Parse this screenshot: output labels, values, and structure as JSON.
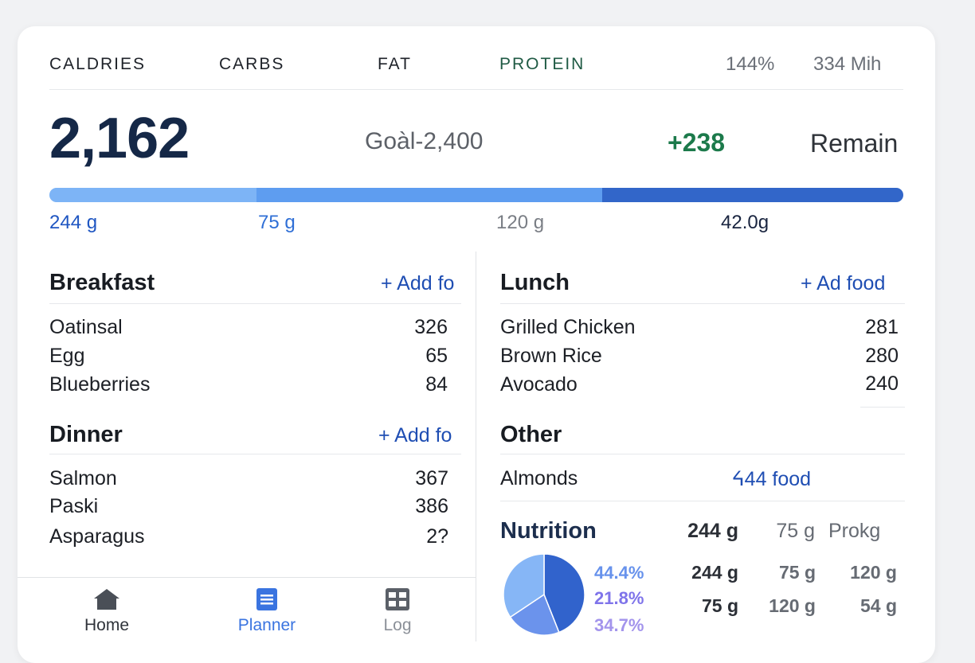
{
  "header": {
    "tabs": [
      {
        "label": "CALDRIES"
      },
      {
        "label": "CARBS"
      },
      {
        "label": "FAT"
      },
      {
        "label": "PROTEIN"
      }
    ],
    "stat_percent": "144%",
    "stat_min": "334 Mih"
  },
  "summary": {
    "calories": "2,162",
    "goal": "Goàl-2,400",
    "delta": "+238",
    "remain_label": "Remain",
    "progress_segments": [
      0.243,
      0.404,
      0.353
    ]
  },
  "macros": [
    "244 g",
    "75 g",
    "120 g",
    "42.0g"
  ],
  "meals": {
    "breakfast": {
      "title": "Breakfast",
      "add_label": "+ Add fo",
      "items": [
        {
          "name": "Oatinsal",
          "kcal": "326"
        },
        {
          "name": "Egg",
          "kcal": "65"
        },
        {
          "name": "Blueberries",
          "kcal": "84"
        }
      ]
    },
    "dinner": {
      "title": "Dinner",
      "add_label": "+ Add fo",
      "items": [
        {
          "name": "Salmon",
          "kcal": "367"
        },
        {
          "name": "Paski",
          "kcal": "386"
        },
        {
          "name": "Asparagus",
          "kcal": "2?"
        }
      ]
    },
    "lunch": {
      "title": "Lunch",
      "add_label": "+ Ad food",
      "items": [
        {
          "name": "Grilled Chicken",
          "kcal": "281"
        },
        {
          "name": "Brown Rice",
          "kcal": "280"
        },
        {
          "name": "Avocado",
          "kcal": "240"
        }
      ]
    },
    "other": {
      "title": "Other",
      "items": [
        {
          "name": "Almonds",
          "add_label": "ᔦ44 food"
        }
      ]
    }
  },
  "nutrition": {
    "title": "Nutrition",
    "header_row": [
      "244 g",
      "75 g",
      "Prokg"
    ],
    "row1": [
      "244 g",
      "75 g",
      "120 g"
    ],
    "row2": [
      "75 g",
      "120 g",
      "54 g"
    ],
    "chart_data": {
      "type": "pie",
      "labels": [
        "44.4%",
        "21.8%",
        "34.7%"
      ],
      "values": [
        44.4,
        21.8,
        34.7
      ],
      "colors": [
        "#3163cc",
        "#6b93ec",
        "#86b6f6"
      ]
    }
  },
  "nav": [
    {
      "label": "Home",
      "icon": "home-icon",
      "color": "#2f333a"
    },
    {
      "label": "Planner",
      "icon": "planner-icon",
      "color": "#3a74e0"
    },
    {
      "label": "Log",
      "icon": "log-icon",
      "color": "#8b9098"
    }
  ]
}
